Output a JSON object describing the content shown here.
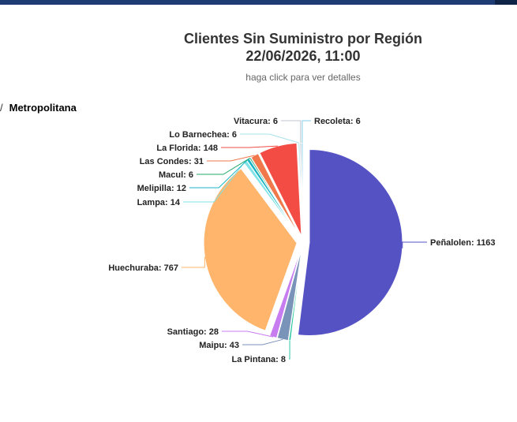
{
  "breadcrumb": {
    "separator": "/",
    "current": "Metropolitana"
  },
  "chart_data": {
    "type": "pie",
    "title": "Clientes Sin Suministro por Región",
    "subtitle_line": "22/06/2026, 11:00",
    "subtitle": "haga click para ver detalles",
    "slices": [
      {
        "label": "Peñalolen",
        "value": 1163,
        "color": "#5552c4"
      },
      {
        "label": "La Pintana",
        "value": 8,
        "color": "#2ec8a5"
      },
      {
        "label": "Maipu",
        "value": 43,
        "color": "#7a93b9"
      },
      {
        "label": "Santiago",
        "value": 28,
        "color": "#c77cf0"
      },
      {
        "label": "Huechuraba",
        "value": 767,
        "color": "#ffb56b"
      },
      {
        "label": "Lampa",
        "value": 14,
        "color": "#7fe3e8"
      },
      {
        "label": "Melipilla",
        "value": 12,
        "color": "#1bb5c5"
      },
      {
        "label": "Macul",
        "value": 6,
        "color": "#1fa86b"
      },
      {
        "label": "Las Condes",
        "value": 31,
        "color": "#f0784b"
      },
      {
        "label": "La Florida",
        "value": 148,
        "color": "#f24c45"
      },
      {
        "label": "Lo Barnechea",
        "value": 6,
        "color": "#a9e3e9"
      },
      {
        "label": "Vitacura",
        "value": 6,
        "color": "#bfc7cf"
      },
      {
        "label": "Recoleta",
        "value": 6,
        "color": "#86cfe9"
      }
    ]
  }
}
